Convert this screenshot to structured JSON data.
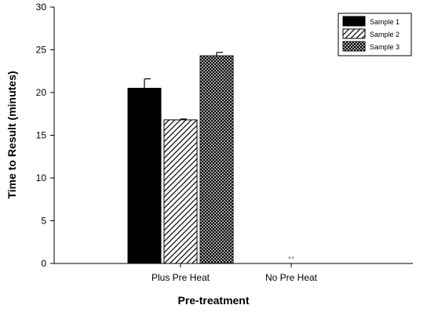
{
  "chart_data": {
    "type": "bar",
    "title": "",
    "xlabel": "Pre-treatment",
    "ylabel": "Time to Result (minutes)",
    "ylim": [
      0,
      30
    ],
    "yticks": [
      0,
      5,
      10,
      15,
      20,
      25,
      30
    ],
    "categories": [
      "Plus Pre Heat",
      "No Pre Heat"
    ],
    "series": [
      {
        "name": "Sample 1",
        "values": [
          20.5,
          null
        ],
        "errors": [
          1.1,
          null
        ],
        "pattern": "solid",
        "color": "#000000"
      },
      {
        "name": "Sample 2",
        "values": [
          16.8,
          null
        ],
        "errors": [
          0.1,
          null
        ],
        "pattern": "diagonal-hatch",
        "color": "#000000"
      },
      {
        "name": "Sample 3",
        "values": [
          24.3,
          null
        ],
        "errors": [
          0.4,
          null
        ],
        "pattern": "crosshatch",
        "color": "#000000"
      }
    ],
    "annotations": [
      {
        "category": "No Pre Heat",
        "text": "**"
      }
    ],
    "legend_position": "top-right",
    "grid": false
  }
}
